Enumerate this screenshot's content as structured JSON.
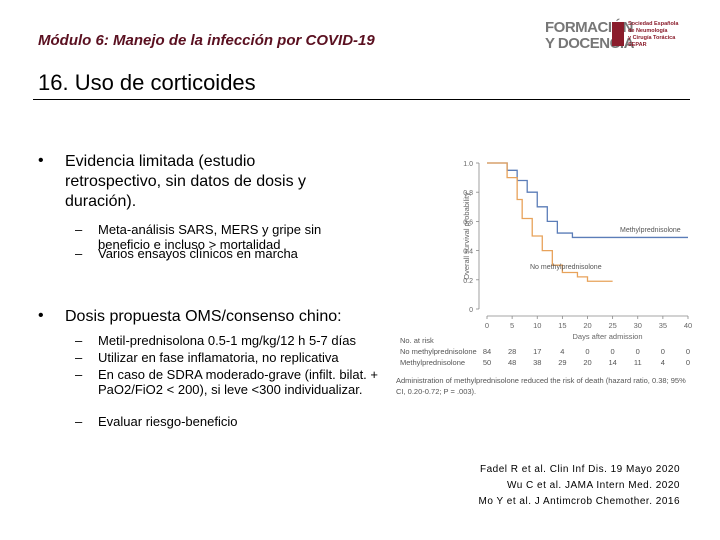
{
  "header": {
    "module": "Módulo 6: Manejo de la infección por COVID-19",
    "logo": {
      "line1": "FORMACIÓN",
      "line2": "Y DOCENCIA",
      "society": [
        "Sociedad Española",
        "de Neumología",
        "y Cirugía Torácica",
        "SEPAR"
      ]
    }
  },
  "title": "16. Uso de corticoides",
  "bullets": [
    {
      "text": "Evidencia limitada (estudio retrospectivo, sin datos de dosis y duración).",
      "sub": [
        "Meta-análisis SARS, MERS y gripe sin beneficio e incluso > mortalidad",
        "Varios ensayos clínicos en marcha"
      ]
    },
    {
      "text": "Dosis propuesta OMS/consenso chino:",
      "sub": [
        "Metil-prednisolona 0.5-1 mg/kg/12 h 5-7 días",
        "Utilizar en fase inflamatoria, no replicativa",
        "En caso de SDRA moderado-grave (infilt. bilat. + PaO2/FiO2 < 200), si leve <300 individualizar.",
        "Evaluar riesgo-beneficio"
      ]
    }
  ],
  "figure": {
    "chart_data": {
      "type": "step",
      "ylabel": "Overall survival probability",
      "xlabel": "Days after admission",
      "xlim": [
        0,
        40
      ],
      "xticks": [
        0,
        5,
        10,
        15,
        20,
        25,
        30,
        35,
        40
      ],
      "ylim": [
        0,
        1
      ],
      "yticks": [
        0,
        0.2,
        0.4,
        0.6,
        0.8,
        {
          "value": 1,
          "label": "1.0"
        }
      ],
      "series": [
        {
          "name": "Methylprednisolone",
          "color": "#5b7db8",
          "x": [
            0,
            3,
            4,
            6,
            8,
            10,
            12,
            14,
            17,
            40
          ],
          "values": [
            1,
            1,
            0.95,
            0.88,
            0.8,
            0.7,
            0.6,
            0.52,
            0.49,
            0.49
          ]
        },
        {
          "name": "No methylprednisolone",
          "color": "#e8a25a",
          "x": [
            0,
            2,
            4,
            6,
            7,
            9,
            11,
            13,
            15,
            18,
            20,
            25
          ],
          "values": [
            1,
            1,
            0.9,
            0.75,
            0.62,
            0.5,
            0.4,
            0.3,
            0.25,
            0.22,
            0.19,
            0.19
          ]
        }
      ]
    },
    "risk_table": {
      "title": "No. at risk",
      "rows": [
        {
          "name": "No methylprednisolone",
          "values": [
            84,
            28,
            17,
            4,
            0,
            0,
            0,
            0,
            0
          ]
        },
        {
          "name": "Methylprednisolone",
          "values": [
            50,
            48,
            38,
            29,
            20,
            14,
            11,
            4,
            0
          ]
        }
      ]
    },
    "caption": "Administration of methylprednisolone reduced the risk of death (hazard ratio, 0.38; 95% CI, 0.20-0.72; P = .003)."
  },
  "references": [
    "Fadel R et al. Clin Inf Dis. 19 Mayo 2020",
    "Wu C et al. JAMA Intern Med. 2020",
    "Mo Y et al. J Antimcrob Chemother. 2016"
  ]
}
